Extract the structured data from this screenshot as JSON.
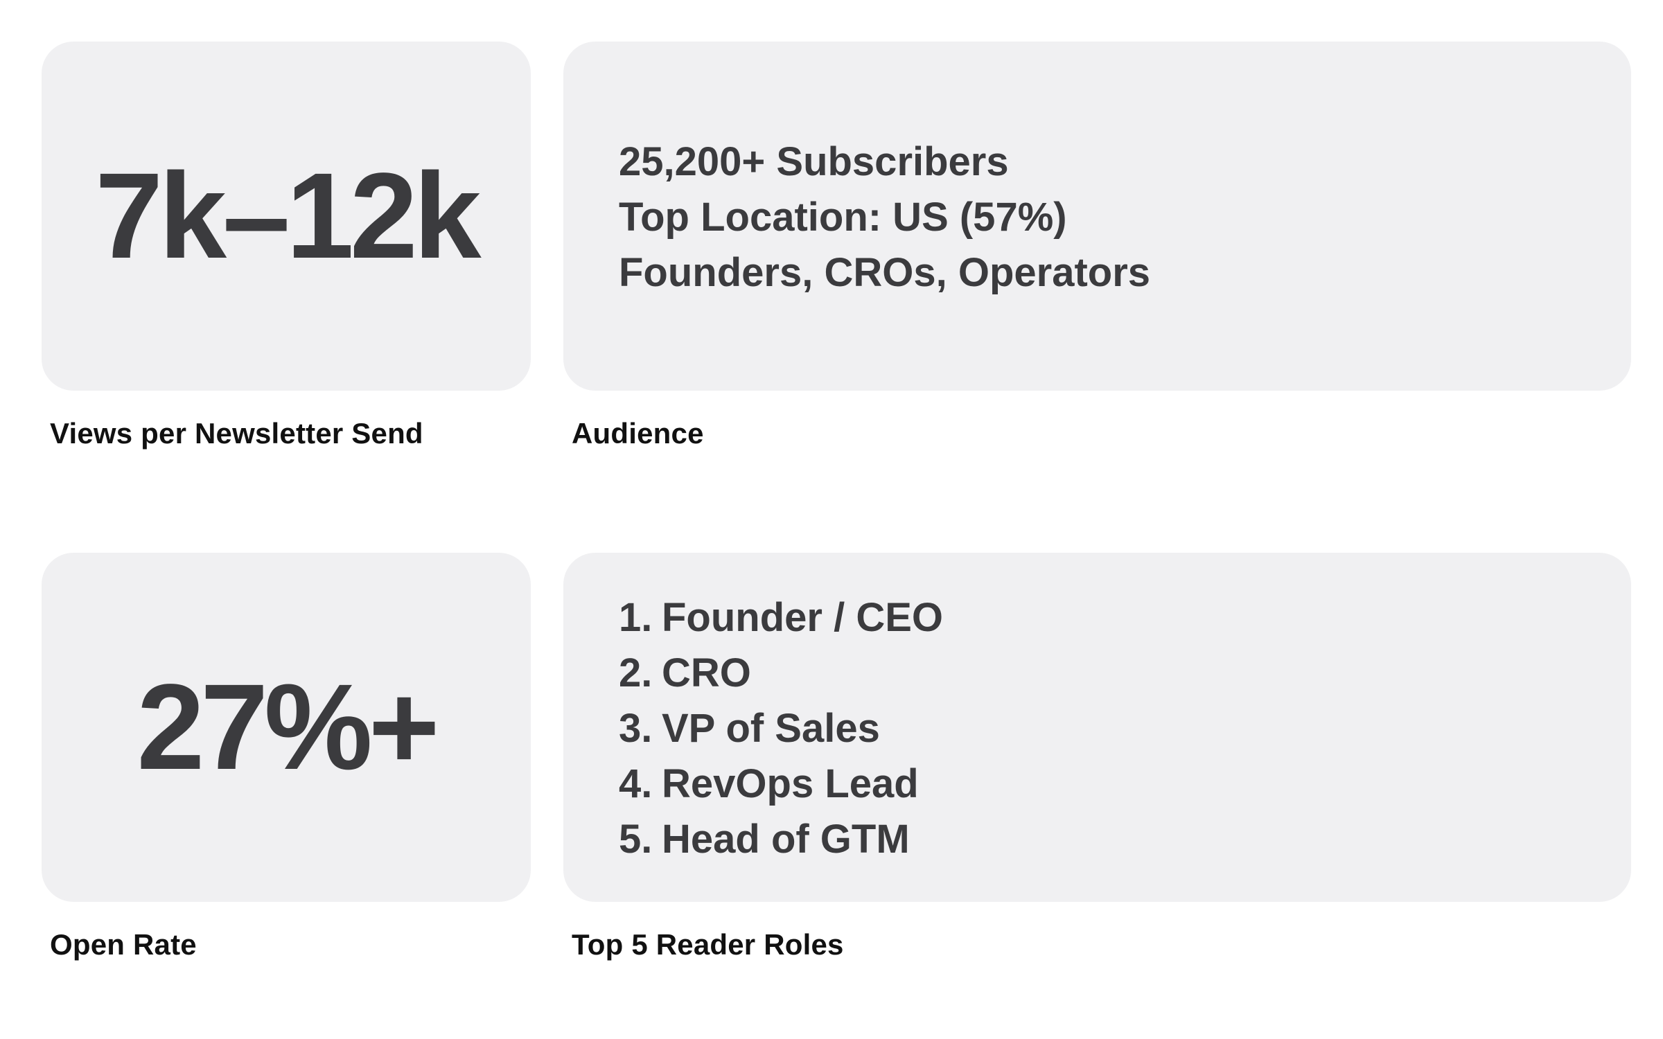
{
  "views": {
    "stat": "7k–12k",
    "caption": "Views per Newsletter Send"
  },
  "audience": {
    "lines": [
      "25,200+ Subscribers",
      "Top Location: US (57%)",
      "Founders, CROs, Operators"
    ],
    "caption": "Audience"
  },
  "open_rate": {
    "stat": "27%+",
    "caption": "Open Rate"
  },
  "roles": {
    "items": [
      {
        "num": "1.",
        "label": "Founder / CEO"
      },
      {
        "num": "2.",
        "label": "CRO"
      },
      {
        "num": "3.",
        "label": "VP of Sales"
      },
      {
        "num": "4.",
        "label": "RevOps Lead"
      },
      {
        "num": "5.",
        "label": "Head of GTM"
      }
    ],
    "caption": "Top 5 Reader Roles"
  }
}
